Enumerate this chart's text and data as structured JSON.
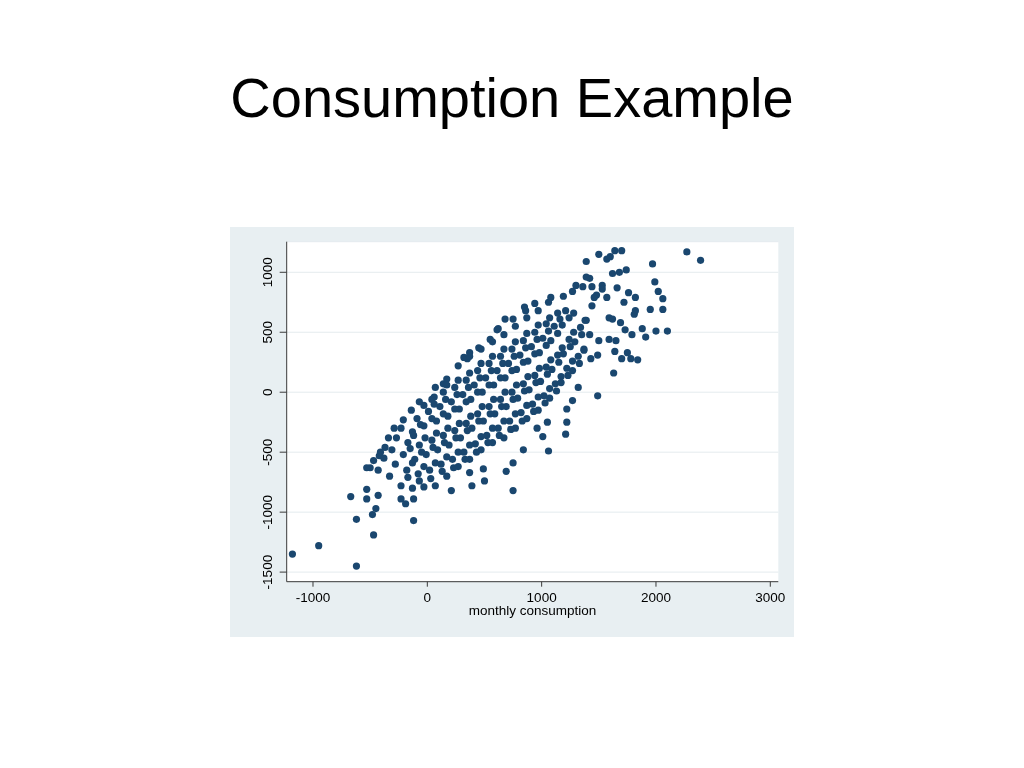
{
  "chart_data": {
    "type": "scatter",
    "title": "Consumption Example",
    "xlabel": "monthly consumption",
    "x": [
      -1180,
      -950,
      -620,
      -470,
      -620,
      -670,
      -120,
      -530,
      -530,
      -480,
      -450,
      -430,
      -500,
      -370,
      -230,
      -190,
      -120,
      210,
      390,
      500,
      490,
      370,
      690,
      750,
      1060,
      1210,
      1010,
      750,
      840,
      1220,
      2270,
      2390,
      1970,
      1640,
      1700,
      1500,
      1570,
      1600,
      1390,
      1620,
      1680,
      1740,
      1420,
      1990,
      2020,
      2060,
      2060,
      1950,
      2100,
      2000,
      1910,
      1880,
      1790,
      1730,
      1690,
      1820,
      1760,
      1720,
      1660,
      1810,
      1820,
      1590,
      1620,
      1530,
      1530,
      1480,
      1460,
      1570,
      1440,
      1360,
      1750,
      1700,
      1780,
      1840,
      1640,
      1630,
      1490,
      1590,
      1650,
      1500,
      1490,
      1430,
      1320,
      1270,
      1220,
      1060,
      850,
      680,
      1190,
      1270,
      350,
      450,
      550,
      620,
      140,
      -30,
      60,
      -340,
      -290,
      -210,
      -140,
      -70,
      320,
      370,
      610,
      750,
      860,
      940,
      1080,
      1300,
      1390,
      -530,
      -470,
      -420,
      960,
      1050,
      -430,
      -380,
      -410,
      -330,
      -280,
      -310,
      -270,
      -230,
      -180,
      -210,
      -170,
      -230,
      -130,
      -80,
      -110,
      -70,
      -130,
      -90,
      -30,
      20,
      -10,
      40,
      -30,
      10,
      40,
      70,
      120,
      90,
      140,
      80,
      110,
      140,
      70,
      170,
      220,
      190,
      240,
      180,
      210,
      240,
      170,
      270,
      320,
      290,
      340,
      280,
      310,
      340,
      270,
      370,
      420,
      390,
      440,
      380,
      410,
      440,
      370,
      470,
      520,
      490,
      540,
      480,
      510,
      540,
      470,
      570,
      620,
      590,
      640,
      580,
      610,
      640,
      570,
      670,
      720,
      690,
      740,
      680,
      710,
      740,
      670,
      770,
      820,
      790,
      840,
      780,
      810,
      840,
      770,
      870,
      920,
      890,
      940,
      880,
      910,
      940,
      870,
      970,
      1020,
      990,
      1040,
      980,
      1010,
      1040,
      970,
      1070,
      1120,
      1090,
      1140,
      1080,
      1110,
      1140,
      1170,
      1220,
      1190,
      1240,
      1180,
      1210,
      1270,
      1320,
      1290,
      1340,
      1280,
      1370,
      1420,
      1390,
      1440,
      -170,
      -130,
      -150,
      -120,
      -70,
      -30,
      -50,
      -20,
      -60,
      30,
      70,
      50,
      80,
      40,
      60,
      130,
      170,
      150,
      180,
      140,
      160,
      170,
      230,
      270,
      250,
      280,
      240,
      260,
      270,
      330,
      370,
      350,
      380,
      340,
      360,
      370,
      430,
      470,
      450,
      480,
      440,
      460,
      470,
      530,
      570,
      550,
      580,
      540,
      560,
      570,
      630,
      670,
      650,
      680,
      640,
      660,
      670,
      730,
      770,
      750,
      780,
      740,
      760,
      770,
      830,
      870,
      850,
      880,
      840,
      860,
      870,
      930,
      970,
      950,
      980,
      940,
      960,
      970,
      1030,
      1070,
      1050,
      1080,
      1040,
      1060,
      1070,
      1130,
      1170,
      1150,
      1180,
      1140,
      1160,
      1230,
      1270,
      1250,
      1280,
      1240,
      1330,
      1370,
      1350,
      1380
    ],
    "values": [
      -1350,
      -1280,
      -1450,
      -1190,
      -1060,
      -870,
      -1070,
      -810,
      -890,
      -1020,
      -970,
      -860,
      -630,
      -460,
      -890,
      -930,
      -890,
      -820,
      -780,
      -740,
      -640,
      -670,
      -660,
      -820,
      -490,
      -350,
      -370,
      -590,
      -480,
      -250,
      1170,
      1100,
      1070,
      1180,
      1180,
      1150,
      1110,
      1130,
      1090,
      990,
      1000,
      1020,
      950,
      920,
      840,
      780,
      690,
      690,
      510,
      510,
      460,
      530,
      480,
      520,
      580,
      790,
      830,
      750,
      870,
      650,
      680,
      620,
      610,
      890,
      860,
      810,
      790,
      790,
      880,
      880,
      330,
      280,
      280,
      270,
      340,
      160,
      -30,
      440,
      430,
      430,
      310,
      280,
      40,
      -70,
      -140,
      750,
      710,
      610,
      800,
      840,
      280,
      370,
      440,
      530,
      70,
      -110,
      -40,
      -380,
      -300,
      -230,
      -150,
      -80,
      290,
      330,
      520,
      610,
      680,
      740,
      790,
      890,
      960,
      -630,
      -570,
      -530,
      -300,
      -250,
      -650,
      -550,
      -500,
      -700,
      -600,
      -480,
      -380,
      -780,
      -650,
      -520,
      -420,
      -300,
      -800,
      -680,
      -560,
      -440,
      -330,
      -220,
      -790,
      -650,
      -520,
      -400,
      -280,
      -160,
      -60,
      -780,
      -600,
      -480,
      -360,
      -240,
      -120,
      0,
      40,
      -700,
      -560,
      -440,
      -320,
      -200,
      -80,
      40,
      110,
      -620,
      -500,
      -380,
      -260,
      -140,
      -20,
      100,
      220,
      -560,
      -430,
      -300,
      -180,
      -60,
      60,
      180,
      300,
      -480,
      -360,
      -240,
      -120,
      0,
      120,
      240,
      360,
      -420,
      -300,
      -180,
      -60,
      60,
      180,
      300,
      420,
      -380,
      -240,
      -120,
      0,
      120,
      240,
      360,
      480,
      -300,
      -170,
      -50,
      70,
      190,
      310,
      430,
      550,
      -220,
      -100,
      20,
      140,
      260,
      380,
      500,
      620,
      -150,
      -30,
      90,
      210,
      330,
      450,
      570,
      680,
      -50,
      70,
      190,
      310,
      430,
      550,
      660,
      80,
      200,
      320,
      440,
      560,
      680,
      180,
      300,
      420,
      540,
      660,
      350,
      480,
      600,
      720,
      -710,
      -590,
      -470,
      -360,
      -740,
      -620,
      -500,
      -380,
      -270,
      -720,
      -590,
      -460,
      -340,
      -220,
      -100,
      -660,
      -540,
      -420,
      -300,
      -180,
      -60,
      60,
      -630,
      -500,
      -380,
      -260,
      -140,
      -20,
      100,
      -560,
      -440,
      -320,
      -200,
      -80,
      40,
      160,
      -500,
      -370,
      -240,
      -120,
      0,
      120,
      240,
      -420,
      -300,
      -180,
      -60,
      60,
      180,
      300,
      -360,
      -240,
      -120,
      0,
      120,
      240,
      360,
      -310,
      -180,
      -60,
      60,
      180,
      300,
      420,
      -240,
      -110,
      10,
      130,
      250,
      370,
      490,
      -160,
      -40,
      80,
      200,
      320,
      440,
      560,
      -90,
      30,
      150,
      270,
      390,
      510,
      620,
      10,
      130,
      250,
      370,
      490,
      610,
      140,
      260,
      380,
      500,
      620,
      240,
      360,
      480,
      600
    ],
    "color": "#1a476f",
    "marker": "circle",
    "xlim": [
      -1230,
      3070
    ],
    "ylim": [
      -1580,
      1255
    ],
    "xticks": [
      -1000,
      0,
      1000,
      2000,
      3000
    ],
    "yticks": [
      -1500,
      -1000,
      -500,
      0,
      500,
      1000
    ],
    "grid": "y"
  }
}
